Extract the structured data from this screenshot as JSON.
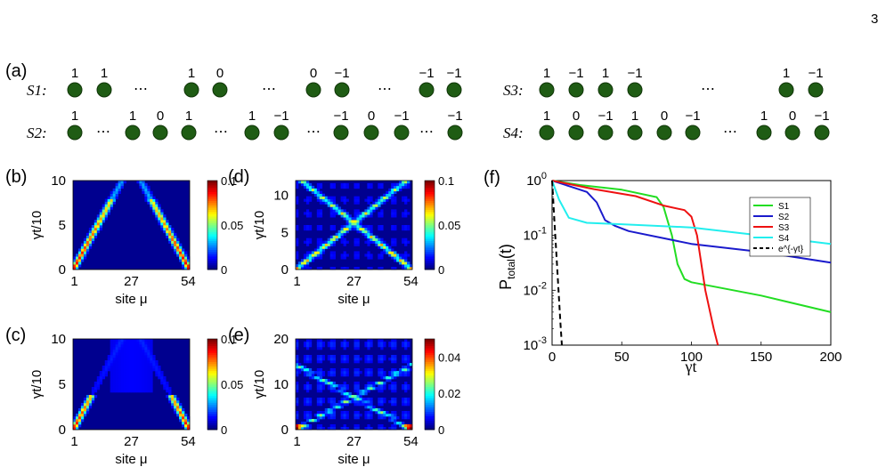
{
  "page_number": "3",
  "panel_a": {
    "label": "(a)",
    "S1": {
      "label": "S1:",
      "values": [
        "1",
        "1",
        "⋯",
        "1",
        "0",
        "⋯",
        "0",
        "−1",
        "⋯",
        "−1",
        "−1"
      ]
    },
    "S2": {
      "label": "S2:",
      "values": [
        "1",
        "⋯",
        "1",
        "0",
        "1",
        "⋯",
        "1",
        "−1",
        "⋯",
        "−1",
        "0",
        "−1",
        "⋯",
        "−1"
      ]
    },
    "S3": {
      "label": "S3:",
      "values": [
        "1",
        "−1",
        "1",
        "−1",
        "⋯",
        "1",
        "−1"
      ]
    },
    "S4": {
      "label": "S4:",
      "values": [
        "1",
        "0",
        "−1",
        "1",
        "0",
        "−1",
        "⋯",
        "1",
        "0",
        "−1"
      ]
    }
  },
  "heatmaps": [
    {
      "label": "(b)",
      "ylabel": "γt/10",
      "xlabel": "site μ",
      "xticks": [
        "1",
        "27",
        "54"
      ],
      "yticks": [
        "0",
        "5",
        "10"
      ],
      "ymax": 10,
      "cbar_ticks": [
        "0",
        "0.05",
        "0.1"
      ],
      "cbar_max": 0.1,
      "pattern": "v_full"
    },
    {
      "label": "(c)",
      "ylabel": "γt/10",
      "xlabel": "site μ",
      "xticks": [
        "1",
        "27",
        "54"
      ],
      "yticks": [
        "0",
        "5",
        "10"
      ],
      "ymax": 10,
      "cbar_ticks": [
        "0",
        "0.05",
        "0.1"
      ],
      "cbar_max": 0.1,
      "pattern": "v_short"
    },
    {
      "label": "(d)",
      "ylabel": "γt/10",
      "xlabel": "site μ",
      "xticks": [
        "1",
        "27",
        "54"
      ],
      "yticks": [
        "0",
        "5",
        "10"
      ],
      "ymax": 12,
      "cbar_ticks": [
        "0",
        "0.05",
        "0.1"
      ],
      "cbar_max": 0.1,
      "pattern": "x_full"
    },
    {
      "label": "(e)",
      "ylabel": "γt/10",
      "xlabel": "site μ",
      "xticks": [
        "1",
        "27",
        "54"
      ],
      "yticks": [
        "0",
        "10",
        "20"
      ],
      "ymax": 20,
      "cbar_ticks": [
        "0",
        "0.02",
        "0.04"
      ],
      "cbar_max": 0.05,
      "pattern": "x_weak"
    }
  ],
  "chart_data": {
    "type": "line",
    "label": "(f)",
    "xlabel": "γt",
    "ylabel": "P_total(t)",
    "ylabel_main": "P",
    "ylabel_sub": "total",
    "ylabel_tail": "(t)",
    "log_y": true,
    "xlim": [
      0,
      200
    ],
    "ylim": [
      0.001,
      1
    ],
    "xticks": [
      "0",
      "50",
      "100",
      "150",
      "200"
    ],
    "yticks": [
      "10^-3",
      "10^-2",
      "10^-1",
      "10^0"
    ],
    "legend_position": "upper-right",
    "series": [
      {
        "name": "S1",
        "color": "#22dd22",
        "dash": "none",
        "points": [
          [
            0,
            1
          ],
          [
            20,
            0.83
          ],
          [
            50,
            0.68
          ],
          [
            75,
            0.5
          ],
          [
            80,
            0.33
          ],
          [
            86,
            0.1
          ],
          [
            90,
            0.03
          ],
          [
            95,
            0.016
          ],
          [
            100,
            0.014
          ],
          [
            150,
            0.008
          ],
          [
            200,
            0.004
          ]
        ]
      },
      {
        "name": "S2",
        "color": "#1a1acc",
        "dash": "none",
        "points": [
          [
            0,
            1
          ],
          [
            15,
            0.75
          ],
          [
            25,
            0.62
          ],
          [
            32,
            0.4
          ],
          [
            38,
            0.19
          ],
          [
            45,
            0.15
          ],
          [
            55,
            0.12
          ],
          [
            100,
            0.07
          ],
          [
            150,
            0.05
          ],
          [
            200,
            0.032
          ]
        ]
      },
      {
        "name": "S3",
        "color": "#ee1111",
        "dash": "none",
        "points": [
          [
            0,
            1
          ],
          [
            30,
            0.7
          ],
          [
            60,
            0.52
          ],
          [
            80,
            0.35
          ],
          [
            95,
            0.29
          ],
          [
            100,
            0.22
          ],
          [
            104,
            0.1
          ],
          [
            110,
            0.01
          ],
          [
            116,
            0.002
          ],
          [
            119,
            0.001
          ]
        ]
      },
      {
        "name": "S4",
        "color": "#22eeee",
        "dash": "none",
        "points": [
          [
            0,
            1
          ],
          [
            5,
            0.45
          ],
          [
            12,
            0.21
          ],
          [
            25,
            0.17
          ],
          [
            50,
            0.16
          ],
          [
            100,
            0.14
          ],
          [
            150,
            0.1
          ],
          [
            200,
            0.07
          ]
        ]
      },
      {
        "name": "e^{-γt}",
        "color": "#000000",
        "dash": "6,4",
        "points": [
          [
            0,
            1
          ],
          [
            2,
            0.135
          ],
          [
            4,
            0.018
          ],
          [
            6,
            0.0025
          ],
          [
            7,
            0.001
          ]
        ]
      }
    ]
  }
}
